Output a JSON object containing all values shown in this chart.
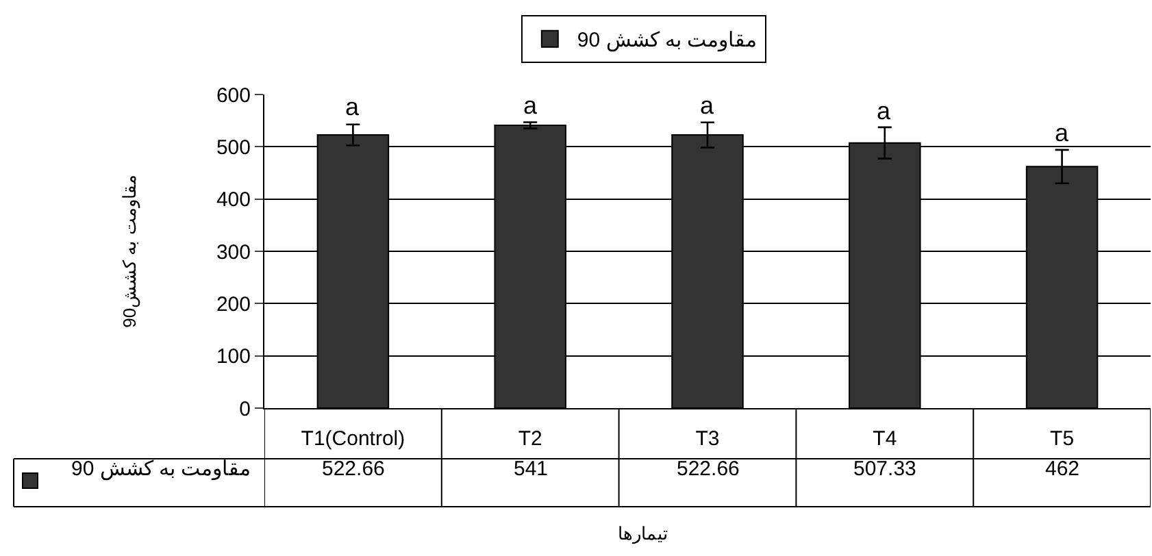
{
  "chart_data": {
    "type": "bar",
    "ylabel": "مقاومت به کشش90",
    "xlabel": "تیمارها",
    "categories": [
      "T1(Control)",
      "T2",
      "T3",
      "T4",
      "T5"
    ],
    "series": [
      {
        "name": "مقاومت به کشش 90",
        "color": "#333333",
        "values": [
          522.66,
          541,
          522.66,
          507.33,
          462
        ],
        "errors": [
          20,
          6,
          24,
          30,
          32
        ]
      }
    ],
    "ylim": [
      0,
      600
    ],
    "yticks": [
      0,
      100,
      200,
      300,
      400,
      500,
      600
    ],
    "grid": "y",
    "legend": "top",
    "data_labels": true,
    "annotations": [
      {
        "text": "a",
        "x": "T1(Control)",
        "y": 545
      },
      {
        "text": "a",
        "x": "T2",
        "y": 547
      },
      {
        "text": "a",
        "x": "T3",
        "y": 547
      },
      {
        "text": "a",
        "x": "T4",
        "y": 538
      },
      {
        "text": "a",
        "x": "T5",
        "y": 494
      }
    ]
  }
}
